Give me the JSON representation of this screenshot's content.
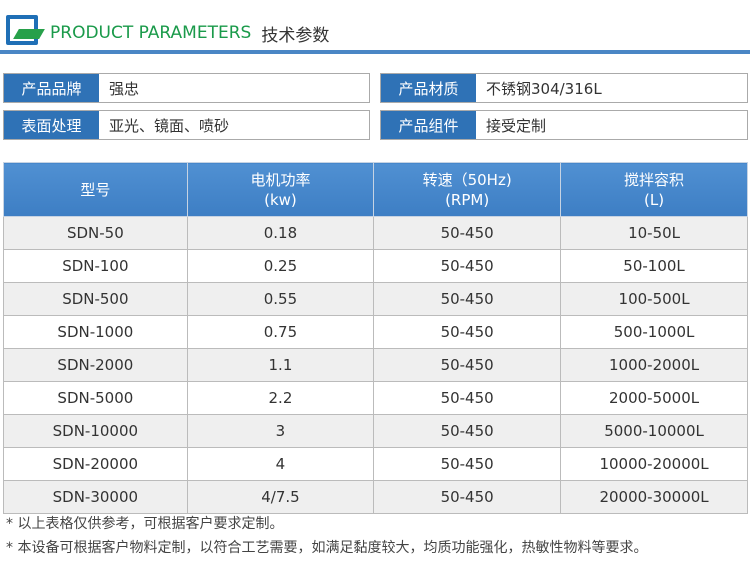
{
  "header": {
    "title_en": "PRODUCT PARAMETERS",
    "title_cn": "技术参数"
  },
  "info": [
    {
      "label": "产品品牌",
      "value": "强忠"
    },
    {
      "label": "产品材质",
      "value": "不锈钢304/316L"
    },
    {
      "label": "表面处理",
      "value": "亚光、镜面、喷砂"
    },
    {
      "label": "产品组件",
      "value": "接受定制"
    }
  ],
  "table": {
    "headers": [
      [
        "型号",
        ""
      ],
      [
        "电机功率",
        "(kw)"
      ],
      [
        "转速（50Hz)",
        "(RPM)"
      ],
      [
        "搅拌容积",
        "(L)"
      ]
    ],
    "rows": [
      [
        "SDN-50",
        "0.18",
        "50-450",
        "10-50L"
      ],
      [
        "SDN-100",
        "0.25",
        "50-450",
        "50-100L"
      ],
      [
        "SDN-500",
        "0.55",
        "50-450",
        "100-500L"
      ],
      [
        "SDN-1000",
        "0.75",
        "50-450",
        "500-1000L"
      ],
      [
        "SDN-2000",
        "1.1",
        "50-450",
        "1000-2000L"
      ],
      [
        "SDN-5000",
        "2.2",
        "50-450",
        "2000-5000L"
      ],
      [
        "SDN-10000",
        "3",
        "50-450",
        "5000-10000L"
      ],
      [
        "SDN-20000",
        "4",
        "50-450",
        "10000-20000L"
      ],
      [
        "SDN-30000",
        "4/7.5",
        "50-450",
        "20000-30000L"
      ]
    ]
  },
  "notes": [
    "* 以上表格仅供参考，可根据客户要求定制。",
    "* 本设备可根据客户物料定制，以符合工艺需要，如满足黏度较大，均质功能强化，热敏性物料等要求。"
  ]
}
